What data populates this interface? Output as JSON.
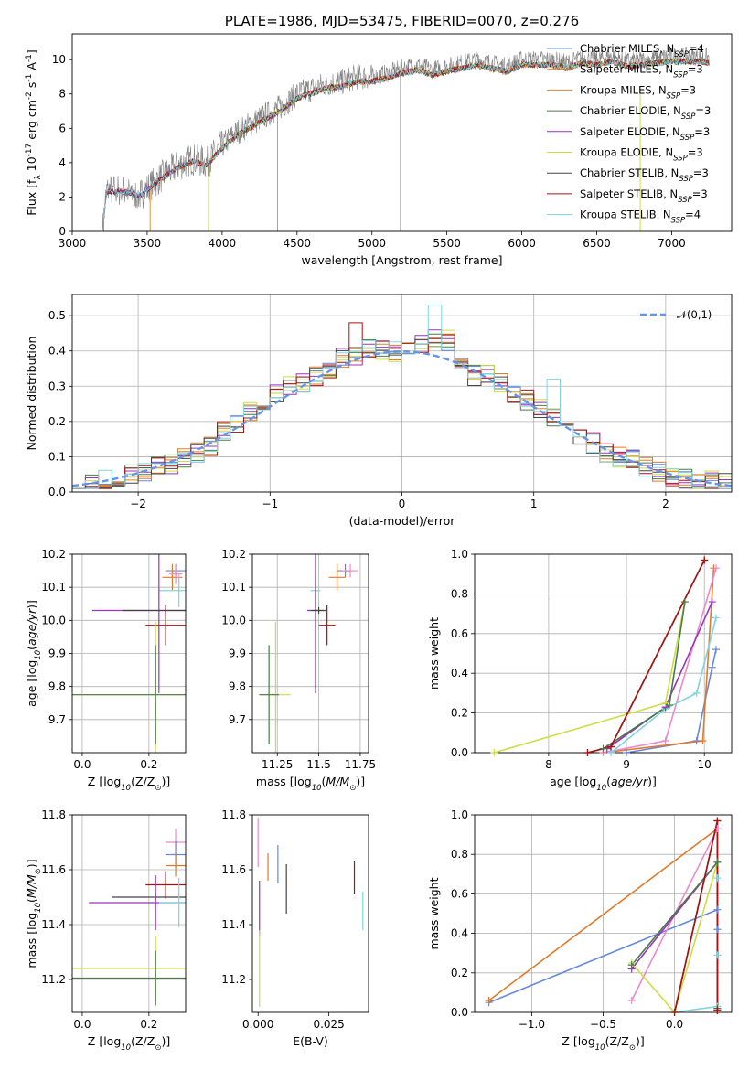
{
  "chart_data": [
    {
      "id": "spectrum",
      "type": "line",
      "title": "PLATE=1986, MJD=53475, FIBERID=0070, z=0.276",
      "xlabel": "wavelength [Angstrom, rest frame]",
      "ylabel": "Flux [f_λ 10^-17 erg cm^-2 s^-1 A^-1]",
      "xlim": [
        3000,
        7400
      ],
      "ylim": [
        0,
        11.5
      ],
      "xticks": [
        3000,
        3500,
        4000,
        4500,
        5000,
        5500,
        6000,
        6500,
        7000
      ],
      "yticks": [
        0,
        2,
        4,
        6,
        8,
        10
      ],
      "legend_loc": "upper right",
      "data_color": "#808080",
      "data_envelope": {
        "x": [
          3200,
          3230,
          3300,
          3400,
          3450,
          3500,
          3600,
          3700,
          3800,
          3900,
          4000,
          4100,
          4200,
          4300,
          4400,
          4500,
          4600,
          4700,
          4800,
          4900,
          5000,
          5100,
          5200,
          5300,
          5400,
          5500,
          5600,
          5700,
          5800,
          5900,
          6000,
          6100,
          6200,
          6300,
          6400,
          6500,
          6600,
          6700,
          6800,
          6900,
          7000,
          7100,
          7200,
          7250
        ],
        "y": [
          0,
          2.4,
          2.4,
          2.3,
          2.1,
          2.5,
          3.2,
          3.8,
          4.2,
          4.0,
          5.0,
          5.8,
          6.3,
          6.8,
          7.3,
          8.0,
          8.3,
          8.6,
          8.7,
          9.0,
          9.0,
          9.2,
          9.5,
          9.7,
          9.4,
          9.6,
          9.8,
          10.0,
          9.8,
          9.6,
          10.0,
          10.0,
          10.0,
          9.8,
          10.1,
          10.0,
          10.2,
          9.9,
          10.0,
          10.1,
          10.2,
          10.2,
          10.2,
          10.1
        ]
      },
      "series": [
        {
          "name": "Chabrier MILES, N$_{SSP}$=4",
          "color": "#6688dd"
        },
        {
          "name": "Salpeter MILES, N$_{SSP}$=3",
          "color": "#e07a2a"
        },
        {
          "name": "Kroupa MILES, N$_{SSP}$=3",
          "color": "#e08020"
        },
        {
          "name": "Chabrier ELODIE, N$_{SSP}$=3",
          "color": "#4a7a4a"
        },
        {
          "name": "Salpeter ELODIE, N$_{SSP}$=3",
          "color": "#9933bb"
        },
        {
          "name": "Kroupa ELODIE, N$_{SSP}$=3",
          "color": "#ccdd44"
        },
        {
          "name": "Chabrier STELIB, N$_{SSP}$=3",
          "color": "#444444"
        },
        {
          "name": "Salpeter STELIB, N$_{SSP}$=3",
          "color": "#aa1111"
        },
        {
          "name": "Kroupa STELIB, N$_{SSP}$=4",
          "color": "#7fd5dd"
        }
      ]
    },
    {
      "id": "residuals",
      "type": "histogram",
      "xlabel": "(data-model)/error",
      "ylabel": "Normed distribution",
      "xlim": [
        -2.5,
        2.5
      ],
      "ylim": [
        0,
        0.56
      ],
      "xticks": [
        -2,
        -1,
        0,
        1,
        2
      ],
      "yticks": [
        0.0,
        0.1,
        0.2,
        0.3,
        0.4,
        0.5
      ],
      "grid": true,
      "legend_loc": "upper right",
      "legend": "$\\mathcal{N}(0,1)$",
      "normal_color": "#6495ed",
      "bin_width": 0.1,
      "bin_start": -2.5,
      "base_profile": [
        0.02,
        0.025,
        0.03,
        0.033,
        0.04,
        0.045,
        0.05,
        0.055,
        0.06,
        0.07,
        0.08,
        0.09,
        0.1,
        0.11,
        0.13,
        0.15,
        0.17,
        0.19,
        0.21,
        0.23,
        0.25,
        0.27,
        0.28,
        0.3,
        0.31,
        0.32,
        0.33,
        0.35,
        0.36,
        0.38,
        0.39,
        0.4,
        0.41,
        0.4,
        0.39,
        0.4,
        0.41,
        0.42,
        0.45,
        0.44,
        0.43,
        0.4,
        0.36,
        0.33,
        0.34,
        0.33,
        0.31,
        0.3,
        0.28,
        0.26,
        0.24,
        0.22,
        0.21,
        0.2,
        0.18,
        0.16,
        0.14,
        0.12,
        0.11,
        0.1,
        0.09,
        0.08,
        0.07,
        0.06,
        0.05,
        0.045,
        0.04,
        0.035,
        0.03,
        0.03,
        0.025,
        0.025
      ],
      "series_colors": [
        "#6688dd",
        "#e07a2a",
        "#e08020",
        "#4a7a4a",
        "#9933bb",
        "#ccdd44",
        "#444444",
        "#aa1111",
        "#7fd5dd"
      ]
    },
    {
      "id": "z-vs-age",
      "type": "scatter",
      "xlabel": "Z [log$_{10}$(Z/Z$_\\odot$)]",
      "ylabel": "age  [log$_{10}$($age/yr$)]",
      "xlim": [
        -0.03,
        0.31
      ],
      "ylim": [
        9.6,
        10.2
      ],
      "xticks": [
        0.0,
        0.2
      ],
      "yticks": [
        9.7,
        9.8,
        9.9,
        10.0,
        10.1,
        10.2
      ],
      "grid": true,
      "points": [
        {
          "x": 0.28,
          "y": 10.15,
          "xerr": 0.03,
          "yerr": 0.02,
          "color": "#6688dd"
        },
        {
          "x": 0.27,
          "y": 10.13,
          "xerr": 0.03,
          "yerr": 0.04,
          "color": "#e07a2a"
        },
        {
          "x": 0.28,
          "y": 10.14,
          "xerr": 0.02,
          "yerr": 0.03,
          "color": "#ee88cc"
        },
        {
          "x": 0.29,
          "y": 10.09,
          "xerr": 0.06,
          "yerr": 0.05,
          "color": "#7fd5dd"
        },
        {
          "x": 0.23,
          "y": 10.03,
          "xerr": 0.2,
          "yerr": 0.25,
          "color": "#9933bb"
        },
        {
          "x": 0.25,
          "y": 10.03,
          "xerr": 0.13,
          "yerr": 0.01,
          "color": "#444444"
        },
        {
          "x": 0.25,
          "y": 9.985,
          "xerr": 0.06,
          "yerr": 0.06,
          "color": "#aa1111"
        },
        {
          "x": 0.22,
          "y": 9.775,
          "xerr": 0.25,
          "yerr": 0.22,
          "color": "#ccdd44"
        },
        {
          "x": 0.22,
          "y": 9.775,
          "xerr": 0.25,
          "yerr": 0.15,
          "color": "#4a7a4a"
        }
      ]
    },
    {
      "id": "mass-vs-age",
      "type": "scatter",
      "xlabel": "mass [log$_{10}$($M/M_\\odot$)]",
      "ylabel": "",
      "xlim": [
        11.1,
        11.8
      ],
      "ylim": [
        9.6,
        10.2
      ],
      "xticks": [
        11.25,
        11.5,
        11.75
      ],
      "yticks": [
        9.7,
        9.8,
        9.9,
        10.0,
        10.1,
        10.2
      ],
      "grid": true,
      "points": [
        {
          "x": 11.66,
          "y": 10.15,
          "xerr": 0.05,
          "yerr": 0.02,
          "color": "#6688dd"
        },
        {
          "x": 11.61,
          "y": 10.13,
          "xerr": 0.05,
          "yerr": 0.04,
          "color": "#e07a2a"
        },
        {
          "x": 11.69,
          "y": 10.15,
          "xerr": 0.05,
          "yerr": 0.02,
          "color": "#ee88cc"
        },
        {
          "x": 11.48,
          "y": 10.09,
          "xerr": 0.03,
          "yerr": 0.05,
          "color": "#7fd5dd"
        },
        {
          "x": 11.48,
          "y": 10.03,
          "xerr": 0.05,
          "yerr": 0.25,
          "color": "#9933bb"
        },
        {
          "x": 11.5,
          "y": 10.03,
          "xerr": 0.05,
          "yerr": 0.01,
          "color": "#444444"
        },
        {
          "x": 11.55,
          "y": 9.985,
          "xerr": 0.05,
          "yerr": 0.06,
          "color": "#aa1111"
        },
        {
          "x": 11.24,
          "y": 9.775,
          "xerr": 0.09,
          "yerr": 0.22,
          "color": "#ccdd44"
        },
        {
          "x": 11.2,
          "y": 9.775,
          "xerr": 0.06,
          "yerr": 0.15,
          "color": "#4a7a4a"
        }
      ]
    },
    {
      "id": "age-vs-weight",
      "type": "line",
      "xlabel": "age  [log$_{10}$($age/yr$)]",
      "ylabel": "mass weight",
      "xlim": [
        7.05,
        10.35
      ],
      "ylim": [
        0,
        1.0
      ],
      "xticks": [
        8,
        9,
        10
      ],
      "yticks": [
        0.0,
        0.2,
        0.4,
        0.6,
        0.8,
        1.0
      ],
      "grid": true,
      "series": [
        {
          "color": "#6688dd",
          "x": [
            9.0,
            9.9,
            10.1,
            10.15
          ],
          "y": [
            0.0,
            0.06,
            0.43,
            0.52
          ]
        },
        {
          "color": "#e07a2a",
          "x": [
            8.7,
            9.98,
            10.12
          ],
          "y": [
            0.0,
            0.06,
            0.93
          ]
        },
        {
          "color": "#ee88cc",
          "x": [
            8.7,
            9.5,
            10.15
          ],
          "y": [
            0.0,
            0.06,
            0.93
          ]
        },
        {
          "color": "#7fd5dd",
          "x": [
            8.8,
            9.5,
            9.9,
            10.15
          ],
          "y": [
            0.0,
            0.22,
            0.3,
            0.68
          ]
        },
        {
          "color": "#9933bb",
          "x": [
            8.75,
            9.5,
            10.1
          ],
          "y": [
            0.02,
            0.23,
            0.76
          ]
        },
        {
          "color": "#ccdd44",
          "x": [
            7.3,
            9.5,
            9.75
          ],
          "y": [
            0.0,
            0.25,
            0.76
          ]
        },
        {
          "color": "#4a7a4a",
          "x": [
            8.7,
            9.55,
            9.75
          ],
          "y": [
            0.02,
            0.24,
            0.76
          ]
        },
        {
          "color": "#444444",
          "x": [
            8.5,
            8.8,
            10.0
          ],
          "y": [
            0.0,
            0.03,
            0.97
          ]
        },
        {
          "color": "#aa1111",
          "x": [
            8.5,
            8.8,
            10.0
          ],
          "y": [
            0.0,
            0.03,
            0.97
          ]
        }
      ]
    },
    {
      "id": "z-vs-mass",
      "type": "scatter",
      "xlabel": "Z [log$_{10}$(Z/Z$_\\odot$)]",
      "ylabel": "mass [log$_{10}$($M/M_\\odot$)]",
      "xlim": [
        -0.03,
        0.31
      ],
      "ylim": [
        11.08,
        11.8
      ],
      "xticks": [
        0.0,
        0.2
      ],
      "yticks": [
        11.2,
        11.4,
        11.6,
        11.8
      ],
      "grid": true,
      "points": [
        {
          "x": 0.28,
          "y": 11.7,
          "xerr": 0.03,
          "yerr": 0.05,
          "color": "#ee88cc"
        },
        {
          "x": 0.28,
          "y": 11.655,
          "xerr": 0.03,
          "yerr": 0.05,
          "color": "#6688dd"
        },
        {
          "x": 0.28,
          "y": 11.615,
          "xerr": 0.03,
          "yerr": 0.04,
          "color": "#e07a2a"
        },
        {
          "x": 0.25,
          "y": 11.545,
          "xerr": 0.06,
          "yerr": 0.05,
          "color": "#aa1111"
        },
        {
          "x": 0.22,
          "y": 11.5,
          "xerr": 0.13,
          "yerr": 0.01,
          "color": "#444444"
        },
        {
          "x": 0.22,
          "y": 11.48,
          "xerr": 0.2,
          "yerr": 0.1,
          "color": "#9933bb"
        },
        {
          "x": 0.29,
          "y": 11.48,
          "xerr": 0.06,
          "yerr": 0.09,
          "color": "#7fd5dd"
        },
        {
          "x": 0.22,
          "y": 11.24,
          "xerr": 0.25,
          "yerr": 0.12,
          "color": "#ccdd44"
        },
        {
          "x": 0.22,
          "y": 11.205,
          "xerr": 0.25,
          "yerr": 0.1,
          "color": "#4a7a4a"
        }
      ]
    },
    {
      "id": "ebv-vs-mass",
      "type": "scatter",
      "xlabel": "E(B-V)",
      "ylabel": "",
      "xlim": [
        -0.002,
        0.039
      ],
      "ylim": [
        11.08,
        11.8
      ],
      "xticks": [
        0.0,
        0.025
      ],
      "yticks": [
        11.2,
        11.4,
        11.6,
        11.8
      ],
      "grid": false,
      "points": [
        {
          "x": 0.0,
          "y": 11.7,
          "xerr": 0.0,
          "yerr": 0.09,
          "color": "#ee88cc"
        },
        {
          "x": 0.007,
          "y": 11.62,
          "xerr": 0.0,
          "yerr": 0.07,
          "color": "#6688dd"
        },
        {
          "x": 0.0035,
          "y": 11.61,
          "xerr": 0.0,
          "yerr": 0.05,
          "color": "#e07a2a"
        },
        {
          "x": 0.01,
          "y": 11.53,
          "xerr": 0.0,
          "yerr": 0.09,
          "color": "#444444"
        },
        {
          "x": 0.034,
          "y": 11.57,
          "xerr": 0.0,
          "yerr": 0.06,
          "color": "#aa1111"
        },
        {
          "x": 0.037,
          "y": 11.45,
          "xerr": 0.0,
          "yerr": 0.07,
          "color": "#7fd5dd"
        },
        {
          "x": 0.0005,
          "y": 11.46,
          "xerr": 0.0,
          "yerr": 0.1,
          "color": "#9933bb"
        },
        {
          "x": 0.0005,
          "y": 11.24,
          "xerr": 0.0,
          "yerr": 0.14,
          "color": "#ccdd44"
        }
      ]
    },
    {
      "id": "z-vs-weight",
      "type": "line",
      "xlabel": "Z [log$_{10}$(Z/Z$_\\odot$)]",
      "ylabel": "mass weight",
      "xlim": [
        -1.4,
        0.4
      ],
      "ylim": [
        0,
        1.0
      ],
      "xticks": [
        -1.0,
        -0.5,
        0.0
      ],
      "yticks": [
        0.0,
        0.2,
        0.4,
        0.6,
        0.8,
        1.0
      ],
      "grid": true,
      "series": [
        {
          "color": "#6688dd",
          "x": [
            -1.3,
            0.3,
            0.3,
            0.3
          ],
          "y": [
            0.05,
            0.52,
            0.42,
            0.02
          ]
        },
        {
          "color": "#e07a2a",
          "x": [
            -1.3,
            0.3,
            0.3
          ],
          "y": [
            0.06,
            0.93,
            0.01
          ]
        },
        {
          "color": "#ee88cc",
          "x": [
            -0.3,
            0.3,
            0.3
          ],
          "y": [
            0.06,
            0.93,
            0.01
          ]
        },
        {
          "color": "#7fd5dd",
          "x": [
            0.0,
            0.3,
            0.3,
            0.3
          ],
          "y": [
            0.0,
            0.03,
            0.29,
            0.68
          ]
        },
        {
          "color": "#9933bb",
          "x": [
            -0.3,
            0.3,
            0.3
          ],
          "y": [
            0.22,
            0.76,
            0.02
          ]
        },
        {
          "color": "#ccdd44",
          "x": [
            -0.3,
            0.0,
            0.3
          ],
          "y": [
            0.25,
            0.0,
            0.76
          ]
        },
        {
          "color": "#4a7a4a",
          "x": [
            -0.3,
            0.3,
            0.3
          ],
          "y": [
            0.24,
            0.76,
            0.02
          ]
        },
        {
          "color": "#444444",
          "x": [
            0.0,
            0.3,
            0.3
          ],
          "y": [
            0.0,
            0.97,
            0.01
          ]
        },
        {
          "color": "#aa1111",
          "x": [
            0.0,
            0.3,
            0.3
          ],
          "y": [
            0.0,
            0.97,
            0.01
          ]
        }
      ]
    }
  ]
}
